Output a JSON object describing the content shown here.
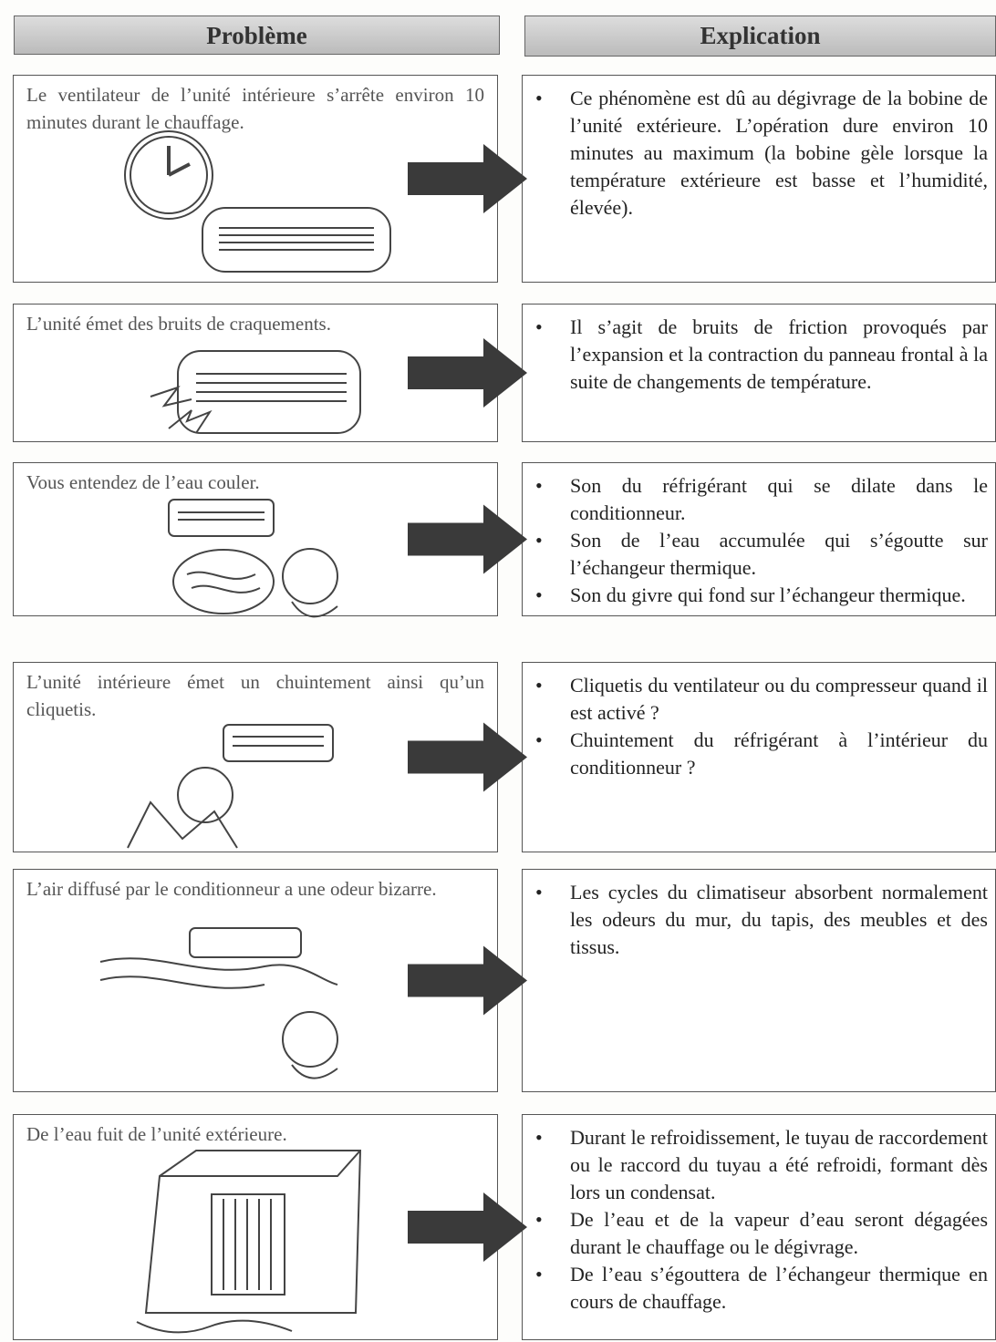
{
  "header": {
    "problem": "Problème",
    "explanation": "Explication"
  },
  "rows": [
    {
      "problem": "Le ventilateur de l’unité intérieure s’arrête environ 10 minutes durant le chauffage.",
      "explanation": [
        "Ce phénomène est dû au dégivrage de la bobine de l’unité extérieure. L’opération dure environ 10 minutes au maximum (la bobine gèle lorsque la température extérieure est basse et l’humidité, élevée)."
      ]
    },
    {
      "problem": "L’unité émet des bruits de craquements.",
      "explanation": [
        "Il s’agit de bruits de friction provoqués par l’expansion et la contraction du panneau frontal à la suite de changements de température."
      ]
    },
    {
      "problem": "Vous entendez de l’eau couler.",
      "explanation": [
        "Son du réfrigérant qui se dilate dans le conditionneur.",
        "Son de l’eau accumulée qui s’égoutte sur l’échangeur thermique.",
        "Son du givre qui fond sur l’échangeur thermique."
      ]
    },
    {
      "problem": "L’unité intérieure émet un chuintement ainsi qu’un cliquetis.",
      "explanation": [
        "Cliquetis du ventilateur ou du compresseur quand il est activé ?",
        "Chuintement du réfrigérant à l’intérieur du conditionneur ?"
      ]
    },
    {
      "problem": "L’air diffusé par le conditionneur a une odeur bizarre.",
      "explanation": [
        "Les cycles du climatiseur absorbent normalement les odeurs du mur, du tapis, des meubles et des tissus."
      ]
    },
    {
      "problem": "De l’eau fuit de l’unité extérieure.",
      "explanation": [
        "Durant le refroidissement, le tuyau de raccordement ou le raccord du tuyau a été refroidi, formant dès lors un condensat.",
        "De l’eau et de la vapeur d’eau seront dégagées durant le chauffage ou le dégivrage.",
        "De l’eau s’égouttera de l’échangeur thermique en cours de chauffage."
      ]
    }
  ]
}
